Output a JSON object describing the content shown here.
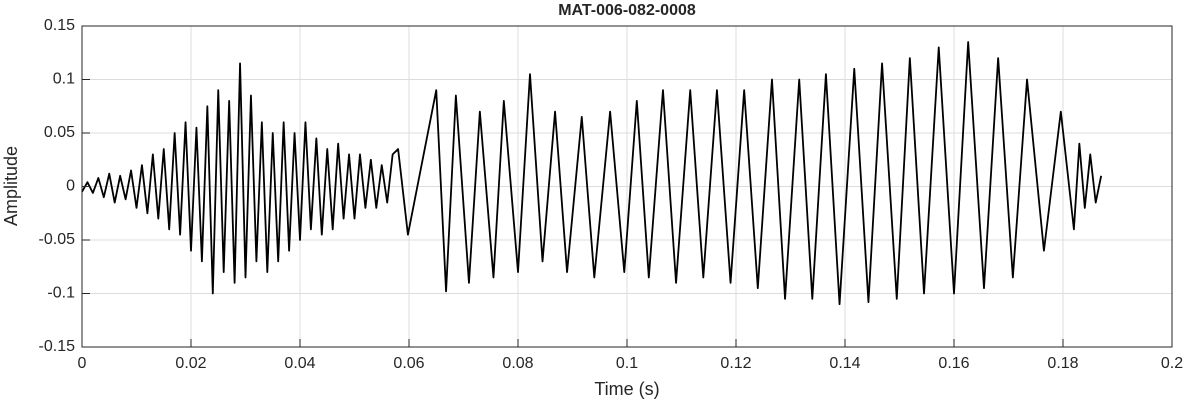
{
  "chart_data": {
    "type": "line",
    "title": "MAT-006-082-0008",
    "x_label": "Time (s)",
    "y_label": "Amplitude",
    "color": "#000000",
    "grid": true,
    "xlim": [
      0,
      0.2
    ],
    "ylim": [
      -0.15,
      0.15
    ],
    "xticks": [
      0,
      0.02,
      0.04,
      0.06,
      0.08,
      0.1,
      0.12,
      0.14,
      0.16,
      0.18,
      0.2
    ],
    "yticks": [
      -0.15,
      -0.1,
      -0.05,
      0,
      0.05,
      0.1,
      0.15
    ],
    "x": [
      0,
      0.001,
      0.002,
      0.003,
      0.004,
      0.005,
      0.006,
      0.007,
      0.008,
      0.009,
      0.01,
      0.011,
      0.012,
      0.013,
      0.014,
      0.015,
      0.016,
      0.017,
      0.018,
      0.019,
      0.02,
      0.021,
      0.022,
      0.023,
      0.024,
      0.025,
      0.026,
      0.027,
      0.028,
      0.029,
      0.03,
      0.031,
      0.032,
      0.033,
      0.034,
      0.035,
      0.036,
      0.037,
      0.038,
      0.039,
      0.04,
      0.041,
      0.042,
      0.043,
      0.044,
      0.045,
      0.046,
      0.047,
      0.048,
      0.049,
      0.05,
      0.051,
      0.052,
      0.053,
      0.054,
      0.055,
      0.056,
      0.057,
      0.058,
      0.0598,
      0.065,
      0.0668,
      0.0686,
      0.071,
      0.073,
      0.0755,
      0.0774,
      0.08,
      0.0822,
      0.0845,
      0.0868,
      0.089,
      0.0917,
      0.094,
      0.0969,
      0.0995,
      0.1018,
      0.104,
      0.1066,
      0.109,
      0.1116,
      0.114,
      0.1165,
      0.119,
      0.1215,
      0.124,
      0.1266,
      0.129,
      0.1316,
      0.134,
      0.1365,
      0.139,
      0.1417,
      0.1443,
      0.1468,
      0.1495,
      0.1519,
      0.1545,
      0.1572,
      0.16,
      0.1626,
      0.1655,
      0.1681,
      0.1708,
      0.1734,
      0.1765,
      0.1796,
      0.182,
      0.183,
      0.184,
      0.185,
      0.186,
      0.187
    ],
    "values": [
      -0.005,
      0.004,
      -0.006,
      0.008,
      -0.01,
      0.012,
      -0.015,
      0.01,
      -0.012,
      0.015,
      -0.02,
      0.02,
      -0.025,
      0.03,
      -0.03,
      0.035,
      -0.04,
      0.05,
      -0.045,
      0.06,
      -0.06,
      0.055,
      -0.07,
      0.075,
      -0.1,
      0.09,
      -0.08,
      0.08,
      -0.09,
      0.115,
      -0.085,
      0.085,
      -0.07,
      0.06,
      -0.08,
      0.05,
      -0.07,
      0.06,
      -0.06,
      0.05,
      -0.05,
      0.06,
      -0.04,
      0.045,
      -0.045,
      0.035,
      -0.04,
      0.04,
      -0.03,
      0.03,
      -0.03,
      0.03,
      -0.02,
      0.025,
      -0.02,
      0.02,
      -0.015,
      0.03,
      0.035,
      -0.045,
      0.09,
      -0.098,
      0.085,
      -0.09,
      0.07,
      -0.085,
      0.08,
      -0.08,
      0.105,
      -0.07,
      0.07,
      -0.08,
      0.065,
      -0.085,
      0.07,
      -0.08,
      0.08,
      -0.085,
      0.09,
      -0.09,
      0.09,
      -0.085,
      0.09,
      -0.09,
      0.09,
      -0.095,
      0.1,
      -0.105,
      0.1,
      -0.105,
      0.105,
      -0.11,
      0.11,
      -0.108,
      0.115,
      -0.105,
      0.12,
      -0.1,
      0.13,
      -0.1,
      0.135,
      -0.095,
      0.12,
      -0.085,
      0.1,
      -0.06,
      0.07,
      -0.04,
      0.04,
      -0.02,
      0.03,
      -0.015,
      0.01
    ]
  }
}
